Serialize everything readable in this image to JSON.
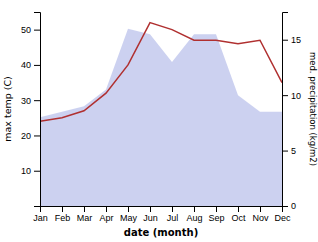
{
  "chart_data": {
    "type": "line",
    "xlabel": "date (month)",
    "ylabel": "max temp (C)",
    "y2label": "med. precipitation (kg/m2)",
    "categories": [
      "Jan",
      "Feb",
      "Mar",
      "Apr",
      "May",
      "Jun",
      "Jul",
      "Aug",
      "Sep",
      "Oct",
      "Nov",
      "Dec"
    ],
    "series": [
      {
        "type": "area",
        "axis": "y2",
        "color": "#b0b8e8",
        "values": [
          8.0,
          8.5,
          9.0,
          10.5,
          16.0,
          15.5,
          13.0,
          15.5,
          15.5,
          10.0,
          8.5,
          8.5
        ]
      },
      {
        "type": "line",
        "color": "#b03030",
        "values": [
          24,
          25,
          27,
          32,
          40,
          52,
          50,
          47,
          47,
          46,
          47,
          35
        ]
      }
    ],
    "ylim": [
      0,
      55
    ],
    "yticks": [
      10,
      20,
      30,
      40,
      50
    ],
    "y2lim": [
      0,
      17.5
    ],
    "y2ticks": [
      0,
      5,
      10,
      15
    ],
    "grid": false
  }
}
